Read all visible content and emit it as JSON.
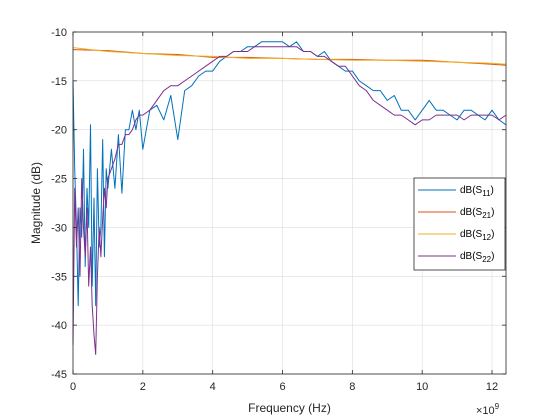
{
  "chart_data": {
    "type": "line",
    "xlabel": "Frequency (Hz)",
    "ylabel": "Magnitude (dB)",
    "x_exponent_base": "×10",
    "x_exponent_power": "9",
    "xlim": [
      0,
      12.4
    ],
    "ylim": [
      -45,
      -10
    ],
    "x_ticks": [
      "0",
      "2",
      "4",
      "6",
      "8",
      "10",
      "12"
    ],
    "y_ticks": [
      "-10",
      "-15",
      "-20",
      "-25",
      "-30",
      "-35",
      "-40",
      "-45"
    ],
    "grid": true,
    "legend_position": "right",
    "series": [
      {
        "name": "dB(S11)",
        "name_main": "dB(S",
        "name_sub": "11",
        "name_end": ")",
        "color": "#0072BD",
        "x": [
          0.0,
          0.05,
          0.1,
          0.15,
          0.2,
          0.25,
          0.3,
          0.35,
          0.4,
          0.45,
          0.5,
          0.55,
          0.6,
          0.65,
          0.7,
          0.75,
          0.8,
          0.85,
          0.9,
          0.95,
          1.0,
          1.1,
          1.2,
          1.3,
          1.4,
          1.5,
          1.6,
          1.7,
          1.8,
          1.9,
          2.0,
          2.2,
          2.4,
          2.6,
          2.8,
          3.0,
          3.2,
          3.4,
          3.6,
          3.8,
          4.0,
          4.2,
          4.4,
          4.6,
          4.8,
          5.0,
          5.2,
          5.4,
          5.6,
          5.8,
          6.0,
          6.2,
          6.4,
          6.6,
          6.8,
          7.0,
          7.2,
          7.4,
          7.6,
          7.8,
          8.0,
          8.2,
          8.4,
          8.6,
          8.8,
          9.0,
          9.2,
          9.4,
          9.6,
          9.8,
          10.0,
          10.2,
          10.4,
          10.6,
          10.8,
          11.0,
          11.2,
          11.4,
          11.6,
          11.8,
          12.0,
          12.2,
          12.4
        ],
        "y": [
          -15,
          -24,
          -30,
          -38,
          -28,
          -31,
          -22,
          -34,
          -26,
          -30,
          -19.5,
          -36,
          -27,
          -38,
          -24,
          -32,
          -30,
          -21,
          -33,
          -24,
          -26,
          -22,
          -26,
          -20.5,
          -26.5,
          -20,
          -20,
          -18,
          -20,
          -18,
          -22,
          -18,
          -17.5,
          -19,
          -16.5,
          -21,
          -16,
          -15.5,
          -14.5,
          -14,
          -14,
          -13,
          -12.5,
          -12,
          -12,
          -11.5,
          -11.5,
          -11,
          -11,
          -11,
          -11,
          -11.5,
          -11,
          -12,
          -12,
          -12.5,
          -12,
          -13,
          -13.5,
          -14,
          -14,
          -15,
          -15.5,
          -16,
          -16,
          -17,
          -16.5,
          -18,
          -18,
          -19,
          -18,
          -17,
          -18,
          -18,
          -18.5,
          -19,
          -18,
          -18,
          -18.5,
          -19,
          -18,
          -19,
          -19.5
        ]
      },
      {
        "name": "dB(S21)",
        "name_main": "dB(S",
        "name_sub": "21",
        "name_end": ")",
        "color": "#D95319",
        "x": [
          0,
          1,
          2,
          3,
          4,
          5,
          6,
          7,
          8,
          9,
          10,
          11,
          12,
          12.4
        ],
        "y": [
          -11.8,
          -11.9,
          -12.2,
          -12.3,
          -12.6,
          -12.6,
          -12.7,
          -12.8,
          -12.8,
          -12.9,
          -12.9,
          -13.1,
          -13.3,
          -13.4
        ]
      },
      {
        "name": "dB(S12)",
        "name_main": "dB(S",
        "name_sub": "12",
        "name_end": ")",
        "color": "#EDB120",
        "x": [
          0,
          1,
          2,
          3,
          4,
          5,
          6,
          7,
          8,
          9,
          10,
          11,
          12,
          12.4
        ],
        "y": [
          -11.6,
          -12,
          -12.2,
          -12.4,
          -12.5,
          -12.7,
          -12.7,
          -12.8,
          -12.9,
          -12.9,
          -13,
          -13.1,
          -13.2,
          -13.3
        ]
      },
      {
        "name": "dB(S22)",
        "name_main": "dB(S",
        "name_sub": "22",
        "name_end": ")",
        "color": "#7E2F8E",
        "x": [
          0.0,
          0.05,
          0.1,
          0.15,
          0.2,
          0.25,
          0.3,
          0.35,
          0.4,
          0.45,
          0.5,
          0.55,
          0.6,
          0.65,
          0.7,
          0.75,
          0.8,
          0.85,
          0.9,
          0.95,
          1.0,
          1.1,
          1.2,
          1.3,
          1.4,
          1.5,
          1.6,
          1.7,
          1.8,
          1.9,
          2.0,
          2.2,
          2.4,
          2.6,
          2.8,
          3.0,
          3.2,
          3.4,
          3.6,
          3.8,
          4.0,
          4.2,
          4.4,
          4.6,
          4.8,
          5.0,
          5.2,
          5.4,
          5.6,
          5.8,
          6.0,
          6.2,
          6.4,
          6.6,
          6.8,
          7.0,
          7.2,
          7.4,
          7.6,
          7.8,
          8.0,
          8.2,
          8.4,
          8.6,
          8.8,
          9.0,
          9.2,
          9.4,
          9.6,
          9.8,
          10.0,
          10.2,
          10.4,
          10.6,
          10.8,
          11.0,
          11.2,
          11.4,
          11.6,
          11.8,
          12.0,
          12.2,
          12.4
        ],
        "y": [
          -42,
          -26,
          -32,
          -28,
          -35,
          -25,
          -30,
          -33,
          -28,
          -36,
          -32,
          -38,
          -41,
          -43,
          -35,
          -30,
          -33,
          -29,
          -26,
          -28,
          -25,
          -24,
          -23,
          -21.5,
          -21.5,
          -20.5,
          -20.5,
          -20,
          -19,
          -18.5,
          -18.5,
          -18,
          -17,
          -16,
          -15.5,
          -15.5,
          -15,
          -14.5,
          -14,
          -13.5,
          -13,
          -12.5,
          -12.5,
          -12,
          -12,
          -12,
          -11.5,
          -11.5,
          -11.5,
          -11.5,
          -11.5,
          -11.5,
          -11.5,
          -12,
          -12,
          -12.5,
          -12.5,
          -13,
          -13.5,
          -13.5,
          -14.5,
          -15.5,
          -16,
          -17,
          -17.5,
          -18,
          -18.5,
          -18.5,
          -19,
          -19.5,
          -19,
          -19,
          -18.5,
          -18.5,
          -18.5,
          -18.5,
          -19,
          -18.5,
          -18.5,
          -18.5,
          -18.5,
          -19,
          -18.5
        ]
      }
    ]
  }
}
